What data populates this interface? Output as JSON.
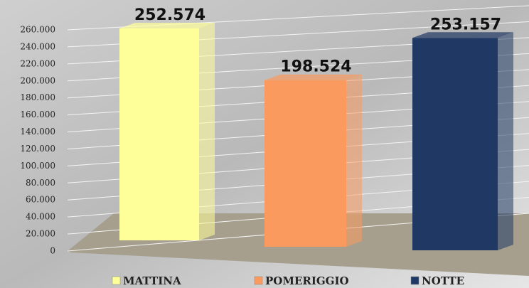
{
  "chart_data": {
    "type": "bar",
    "categories": [
      "MATTINA",
      "POMERIGGIO",
      "NOTTE"
    ],
    "values": [
      252574,
      198524,
      253157
    ],
    "value_labels": [
      "252.574",
      "198.524",
      "253.157"
    ],
    "colors": [
      "#ffff99",
      "#fa9a5e",
      "#1f3864"
    ],
    "ylim": [
      0,
      260000
    ],
    "yticks": [
      0,
      {
        "value": 20000,
        "label": "20.000"
      },
      {
        "value": 40000,
        "label": "40.000"
      },
      {
        "value": 60000,
        "label": "60.000"
      },
      {
        "value": 80000,
        "label": "80.000"
      },
      {
        "value": 100000,
        "label": "100.000"
      },
      {
        "value": 120000,
        "label": "120.000"
      },
      {
        "value": 140000,
        "label": "140.000"
      },
      {
        "value": 160000,
        "label": "160.000"
      },
      {
        "value": 180000,
        "label": "180.000"
      },
      {
        "value": 200000,
        "label": "200.000"
      },
      {
        "value": 220000,
        "label": "220.000"
      },
      {
        "value": 240000,
        "label": "240.000"
      },
      {
        "value": 260000,
        "label": "260.000"
      }
    ],
    "grid": true,
    "legend": "bottom"
  }
}
